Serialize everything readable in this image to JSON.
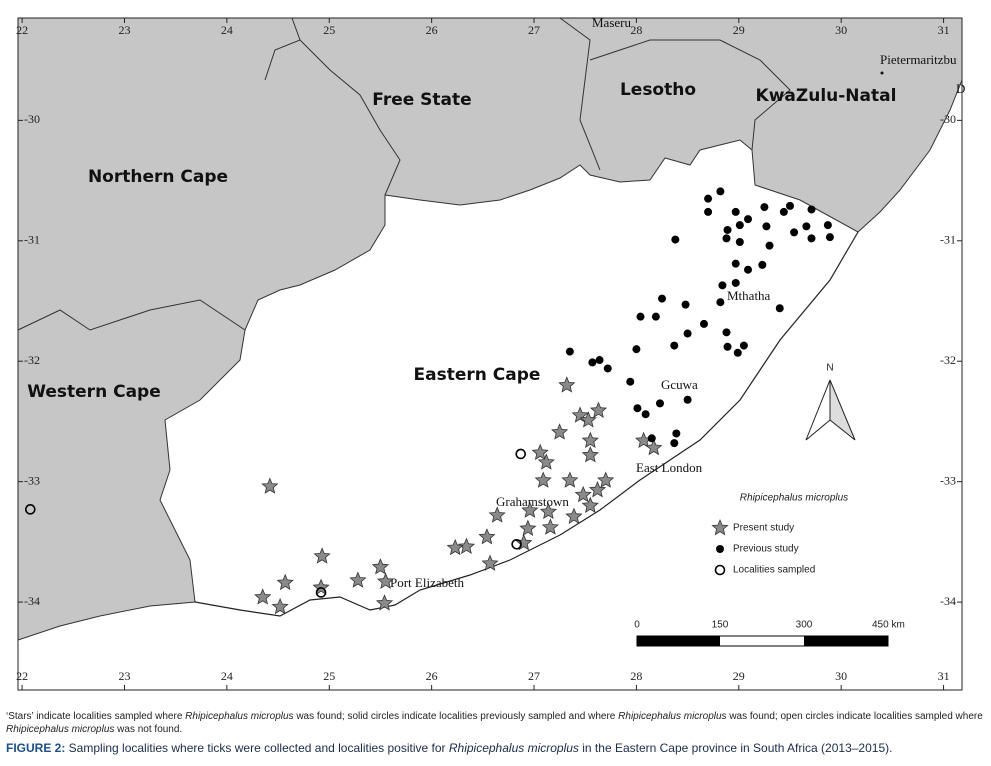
{
  "chart_data": {
    "type": "scatter",
    "xlim": [
      21.96,
      31.18
    ],
    "ylim": [
      -34.73,
      -29.15
    ],
    "xticks": [
      22,
      23,
      24,
      25,
      26,
      27,
      28,
      29,
      30,
      31
    ],
    "yticks": [
      -30,
      -31,
      -32,
      -33,
      -34
    ],
    "regions": [
      "Northern Cape",
      "Free State",
      "Lesotho",
      "KwaZulu-Natal",
      "Western Cape",
      "Eastern Cape"
    ],
    "places": [
      "Maseru",
      "Pietermaritzbu",
      "D",
      "Mthatha",
      "Gcuwa",
      "East London",
      "Grahamstown",
      "Port Elizabeth"
    ],
    "compass": "N",
    "legend_title": "Rhipicephalus microplus",
    "scale_bar": [
      "0",
      "150",
      "300",
      "450 km"
    ],
    "series": [
      {
        "name": "Present study",
        "marker": "star",
        "color": "#8a8a8a",
        "x": [
          24.42,
          27.32,
          27.45,
          27.63,
          27.53,
          27.55,
          27.55,
          27.25,
          27.06,
          27.12,
          27.09,
          27.35,
          27.7,
          27.62,
          27.48,
          27.55,
          27.39,
          27.14,
          26.96,
          26.64,
          26.94,
          27.16,
          26.9,
          26.54,
          26.34,
          26.23,
          26.57,
          24.93,
          25.5,
          25.28,
          25.55,
          24.57,
          24.92,
          24.35,
          24.52,
          25.54,
          28.07,
          28.17
        ],
        "y": [
          -33.04,
          -32.2,
          -32.45,
          -32.41,
          -32.49,
          -32.66,
          -32.78,
          -32.59,
          -32.76,
          -32.84,
          -32.99,
          -32.99,
          -32.99,
          -33.07,
          -33.11,
          -33.2,
          -33.29,
          -33.25,
          -33.24,
          -33.28,
          -33.39,
          -33.38,
          -33.51,
          -33.46,
          -33.54,
          -33.55,
          -33.68,
          -33.62,
          -33.71,
          -33.82,
          -33.83,
          -33.84,
          -33.88,
          -33.96,
          -34.04,
          -34.01,
          -32.66,
          -32.72
        ]
      },
      {
        "name": "Previous study",
        "marker": "dot",
        "color": "#000000",
        "x": [
          28.7,
          28.82,
          28.7,
          28.97,
          29.09,
          29.25,
          29.5,
          29.44,
          29.71,
          29.87,
          29.89,
          29.66,
          29.71,
          29.54,
          29.27,
          29.01,
          28.89,
          29.01,
          28.88,
          28.38,
          29.3,
          29.23,
          28.97,
          29.09,
          28.97,
          28.84,
          28.82,
          28.25,
          28.48,
          28.04,
          28.19,
          28.66,
          28.5,
          28.88,
          29.4,
          28.37,
          28.0,
          28.89,
          29.05,
          28.99,
          27.35,
          27.57,
          27.64,
          27.72,
          27.94,
          28.01,
          28.09,
          28.23,
          28.5,
          28.39,
          28.15,
          28.37
        ],
        "y": [
          -30.65,
          -30.59,
          -30.76,
          -30.76,
          -30.82,
          -30.72,
          -30.71,
          -30.76,
          -30.74,
          -30.87,
          -30.97,
          -30.88,
          -30.98,
          -30.93,
          -30.88,
          -30.87,
          -30.91,
          -31.01,
          -30.98,
          -30.99,
          -31.04,
          -31.2,
          -31.19,
          -31.24,
          -31.35,
          -31.37,
          -31.51,
          -31.48,
          -31.53,
          -31.63,
          -31.63,
          -31.69,
          -31.77,
          -31.76,
          -31.56,
          -31.87,
          -31.9,
          -31.88,
          -31.87,
          -31.93,
          -31.92,
          -32.01,
          -31.99,
          -32.06,
          -32.17,
          -32.39,
          -32.44,
          -32.35,
          -32.32,
          -32.6,
          -32.64,
          -32.68
        ]
      },
      {
        "name": "Localities sampled",
        "marker": "ring",
        "color": "#000000",
        "x": [
          22.08,
          26.87,
          26.83,
          24.92
        ],
        "y": [
          -33.23,
          -32.77,
          -33.52,
          -33.92
        ]
      }
    ]
  },
  "caption": {
    "note": [
      "‘Stars’ indicate localities sampled where ",
      "Rhipicephalus microplus",
      " was found; solid circles indicate localities previously sampled and where ",
      "Rhipicephalus microplus",
      " was found; open circles indicate localities sampled where ",
      "Rhipicephalus microplus",
      " was not found."
    ],
    "figure": [
      "FIGURE 2:",
      " Sampling localities where ticks were collected and localities positive for ",
      "Rhipicephalus microplus",
      " in the Eastern Cape province in South Africa (2013–2015)."
    ]
  }
}
